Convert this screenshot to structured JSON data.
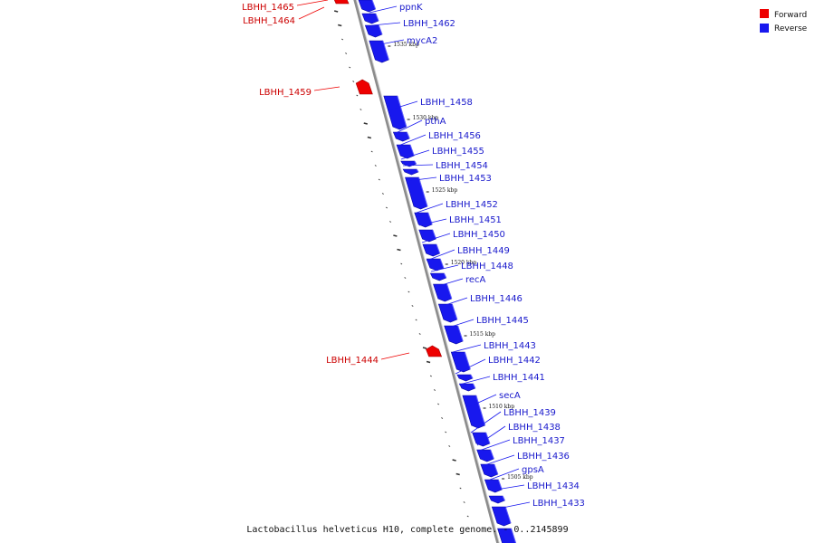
{
  "colors": {
    "forward": "#ee0000",
    "reverse": "#1818ee",
    "backbone": "#8c8c8c",
    "dots": "#333333"
  },
  "legend": {
    "forward_label": "Forward",
    "reverse_label": "Reverse"
  },
  "caption": "Lactobacillus helveticus H10, complete genome. - 0..2145899",
  "kbp_marks": [
    "1535 kbp",
    "1530 kbp",
    "1525 kbp",
    "1520 kbp",
    "1515 kbp",
    "1510 kbp",
    "1505 kbp"
  ],
  "forward_genes": [
    "LBHH_1465",
    "LBHH_1464",
    "LBHH_1459",
    "LBHH_1444"
  ],
  "reverse_genes": [
    "ppnK",
    "LBHH_1462",
    "mycA2",
    "LBHH_1458",
    "pthA",
    "LBHH_1456",
    "LBHH_1455",
    "LBHH_1454",
    "LBHH_1453",
    "LBHH_1452",
    "LBHH_1451",
    "LBHH_1450",
    "LBHH_1449",
    "LBHH_1448",
    "recA",
    "LBHH_1446",
    "LBHH_1445",
    "LBHH_1443",
    "LBHH_1442",
    "LBHH_1441",
    "secA",
    "LBHH_1439",
    "LBHH_1438",
    "LBHH_1437",
    "LBHH_1436",
    "gpsA",
    "LBHH_1434",
    "LBHH_1433"
  ]
}
